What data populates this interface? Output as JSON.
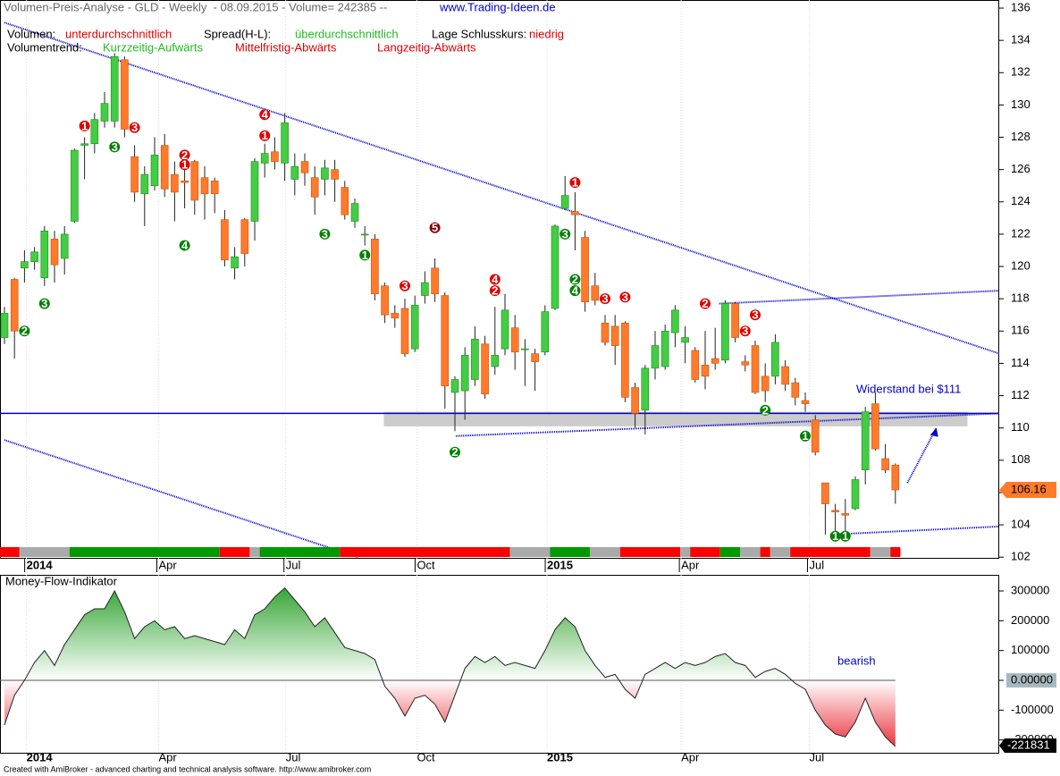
{
  "header": {
    "title": "Volumen-Preis-Analyse - GLD - Weekly  - 08.09.2015 - Volume= 242385 --",
    "url": "www.Trading-Ideen.de",
    "volumen_label": "Volumen:",
    "volumen_value": "unterdurchschnittlich",
    "spread_label": "Spread(H-L):",
    "spread_value": "überdurchschnittlich",
    "lage_label": "Lage Schlusskurs:",
    "lage_value": "niedrig",
    "trend_label": "Volumentrend:",
    "trend_short": "Kurzzeitig-Aufwärts",
    "trend_mid": "Mittelfristig-Abwärts",
    "trend_long": "Langzeitig-Abwärts"
  },
  "footer": "Created with AmiBroker - advanced charting and technical analysis software. http://www.amibroker.com",
  "chart_data": [
    {
      "type": "candlestick",
      "up_color": "#44cc44",
      "down_color": "#ff7a2a",
      "open": [
        115.6,
        119.2,
        119.9,
        120.3,
        119.3,
        121.7,
        120.5,
        122.8,
        127.5,
        127.6,
        129,
        129,
        132.8,
        126.8,
        124.5,
        125,
        127.5,
        125.7,
        125.3,
        126.5,
        125.5,
        125.3,
        122.9,
        119.9,
        122.9,
        122.8,
        126.4,
        127.1,
        126.4,
        125.4,
        126.5,
        125.5,
        125.4,
        126,
        124.9,
        122.8,
        122,
        121.7,
        118.8,
        117.1,
        117.4,
        114.9,
        118.2,
        119.9,
        118.2,
        112.2,
        112.3,
        113,
        115.2,
        113.8,
        114.9,
        116.2,
        114.9,
        114.6,
        114.7,
        117.4,
        123.6,
        123.4,
        121.8,
        118.8,
        116.5,
        116.3,
        116.5,
        112.5,
        111.1,
        113.7,
        113.8,
        115.9,
        115.3,
        114.8,
        113.9,
        114.3,
        114.2,
        117.7,
        114.1,
        115.1,
        113.2,
        113.2,
        113.8,
        112.8,
        111.7,
        110.5,
        106.6,
        104.9,
        104.7,
        105,
        107.4,
        111.5,
        108.1,
        107.7
      ],
      "high": [
        117.5,
        119.3,
        121,
        121.2,
        122.5,
        122.2,
        122.5,
        127.3,
        128,
        129.5,
        130.8,
        133.2,
        133,
        127.5,
        126.2,
        128,
        128.2,
        126.5,
        126,
        126.6,
        126.2,
        125.5,
        123.5,
        121.2,
        123,
        126.7,
        127.6,
        128,
        129.5,
        127,
        127,
        126.2,
        126.6,
        126.6,
        125.3,
        124.2,
        122.5,
        122,
        119,
        117.6,
        118,
        118.2,
        119.7,
        120.5,
        118.4,
        113.2,
        115,
        116.3,
        115.7,
        117.5,
        118.3,
        117,
        115.5,
        114.9,
        117.6,
        122.6,
        125.6,
        124.6,
        122.2,
        119.6,
        117,
        117,
        116.6,
        112.8,
        113.9,
        116,
        116.4,
        117.6,
        116.3,
        115,
        116,
        116.2,
        117.9,
        117.8,
        114.5,
        115.4,
        114,
        115.8,
        114.2,
        113.1,
        112.2,
        110.8,
        106.6,
        105.3,
        105.6,
        107,
        111.3,
        112.2,
        109,
        107.8
      ],
      "low": [
        115.2,
        114.3,
        119,
        119.8,
        118.8,
        119,
        119.5,
        122.7,
        125.4,
        127,
        128.6,
        128.6,
        128,
        124,
        122.5,
        124.7,
        124.3,
        122.8,
        123.6,
        123.2,
        122.9,
        123.3,
        120,
        119.2,
        120,
        121.6,
        125.5,
        126,
        125.3,
        124.4,
        125,
        123.2,
        124.4,
        124,
        122.9,
        122.4,
        121.3,
        117.9,
        116.5,
        116.2,
        114.4,
        114.7,
        117.7,
        117.8,
        111.2,
        109.8,
        110.5,
        112.6,
        111.8,
        113.3,
        114.5,
        113.6,
        112.6,
        112.3,
        114.5,
        117.3,
        123.5,
        121,
        117.2,
        117.6,
        115.1,
        113.9,
        111.6,
        110,
        109.6,
        113,
        113.6,
        115,
        114,
        112.8,
        112.4,
        113.6,
        114,
        115.3,
        113.5,
        112.1,
        111.6,
        112.7,
        112.3,
        111.4,
        111,
        108.3,
        103.4,
        103.5,
        103.6,
        104.9,
        106.5,
        108.6,
        107.2,
        105.3
      ],
      "close": [
        117.1,
        116,
        120.3,
        120.9,
        122.2,
        120.1,
        122,
        127.2,
        127.6,
        129.1,
        130.1,
        133,
        128.5,
        124.6,
        125.7,
        126.9,
        124.8,
        124.6,
        125.2,
        124.1,
        124.5,
        124.5,
        120.4,
        120.6,
        120.8,
        126.5,
        127,
        126.5,
        128.9,
        126.2,
        125.8,
        124.3,
        126.1,
        125.4,
        123.2,
        123.9,
        122,
        118.3,
        117,
        116.8,
        114.6,
        117.6,
        119,
        118.3,
        112.6,
        113,
        114.5,
        115.5,
        112.1,
        114.5,
        117.3,
        114.7,
        114.9,
        114.1,
        117.2,
        122.5,
        124.4,
        123.2,
        117.8,
        117.9,
        115.3,
        115.1,
        111.9,
        110.9,
        113.7,
        115.1,
        116,
        117.3,
        115.6,
        113,
        113.2,
        114,
        117.7,
        115.6,
        113.9,
        112.2,
        112.3,
        115.3,
        112.7,
        111.9,
        111.5,
        108.5,
        105.3,
        104.8,
        104.6,
        106.8,
        111,
        108.7,
        107.4,
        106.16
      ],
      "ylim": [
        101.9,
        136.5
      ],
      "yticks": [
        102,
        104,
        106,
        108,
        110,
        112,
        114,
        116,
        118,
        120,
        122,
        124,
        126,
        128,
        130,
        132,
        134,
        136
      ],
      "xticks": [
        {
          "value": 2.2,
          "label": "2014"
        },
        {
          "value": 15.4,
          "label": "Apr"
        },
        {
          "value": 28.1,
          "label": "Jul"
        },
        {
          "value": 41.2,
          "label": "Oct"
        },
        {
          "value": 54.2,
          "label": "2015"
        },
        {
          "value": 67.6,
          "label": "Apr"
        },
        {
          "value": 80.4,
          "label": "Jul"
        }
      ],
      "resistance": 110.9,
      "resistance_color": "#0000cc",
      "zone": {
        "from": 37.9,
        "to": 96.2,
        "low": 110.1,
        "high": 111.0,
        "color": "#cccccc"
      },
      "trendlines": [
        {
          "points": [
            [
              0,
              135.1
            ],
            [
              99.4,
              114.6
            ]
          ],
          "color": "#0000cc"
        },
        {
          "points": [
            [
              0,
              109.25
            ],
            [
              35.3,
              102
            ]
          ],
          "color": "#0000cc"
        },
        {
          "points": [
            [
              45.1,
              109.5
            ],
            [
              99.4,
              110.9
            ]
          ],
          "color": "#0000cc"
        },
        {
          "points": [
            [
              71.4,
              117.7
            ],
            [
              99.4,
              118.5
            ]
          ],
          "color": "#0000cc"
        },
        {
          "points": [
            [
              82.6,
              103.4
            ],
            [
              99.4,
              103.9
            ]
          ],
          "color": "#0000cc"
        },
        {
          "points": [
            [
              90.2,
              106.6
            ],
            [
              93.1,
              110.0
            ]
          ],
          "color": "#0000cc"
        }
      ],
      "annotation": "Widerstand bei $111",
      "signals": [
        {
          "index": 2,
          "price": 116.0,
          "label": "2",
          "color": "#008000"
        },
        {
          "index": 4,
          "price": 117.7,
          "label": "3",
          "color": "#008000"
        },
        {
          "index": 8,
          "price": 128.7,
          "label": "1",
          "color": "#e00000"
        },
        {
          "index": 11,
          "price": 127.4,
          "label": "3",
          "color": "#008000"
        },
        {
          "index": 13,
          "price": 128.6,
          "label": "3",
          "color": "#e00000"
        },
        {
          "index": 18,
          "price": 126.9,
          "label": "2",
          "color": "#e00000"
        },
        {
          "index": 18,
          "price": 126.3,
          "label": "1",
          "color": "#e00000"
        },
        {
          "index": 18,
          "price": 121.3,
          "label": "4",
          "color": "#008000"
        },
        {
          "index": 26,
          "price": 129.4,
          "label": "4",
          "color": "#e00000"
        },
        {
          "index": 26,
          "price": 128.1,
          "label": "1",
          "color": "#e00000"
        },
        {
          "index": 32,
          "price": 122.0,
          "label": "3",
          "color": "#008000"
        },
        {
          "index": 36,
          "price": 120.7,
          "label": "1",
          "color": "#008000"
        },
        {
          "index": 43,
          "price": 122.4,
          "label": "5",
          "color": "#800000"
        },
        {
          "index": 40,
          "price": 118.8,
          "label": "3",
          "color": "#e00000"
        },
        {
          "index": 49,
          "price": 119.2,
          "label": "4",
          "color": "#e00000"
        },
        {
          "index": 49,
          "price": 118.5,
          "label": "2",
          "color": "#e00000"
        },
        {
          "index": 45,
          "price": 108.5,
          "label": "2",
          "color": "#008000"
        },
        {
          "index": 56,
          "price": 122.0,
          "label": "3",
          "color": "#008000"
        },
        {
          "index": 57,
          "price": 125.2,
          "label": "1",
          "color": "#e00000"
        },
        {
          "index": 57,
          "price": 119.2,
          "label": "2",
          "color": "#008000"
        },
        {
          "index": 57,
          "price": 118.5,
          "label": "4",
          "color": "#008000"
        },
        {
          "index": 60,
          "price": 118.0,
          "label": "3",
          "color": "#e00000"
        },
        {
          "index": 62,
          "price": 118.1,
          "label": "3",
          "color": "#e00000"
        },
        {
          "index": 70,
          "price": 117.7,
          "label": "2",
          "color": "#e00000"
        },
        {
          "index": 75,
          "price": 117.0,
          "label": "3",
          "color": "#e00000"
        },
        {
          "index": 74,
          "price": 116.0,
          "label": "3",
          "color": "#e00000"
        },
        {
          "index": 76,
          "price": 111.1,
          "label": "2",
          "color": "#008000"
        },
        {
          "index": 80,
          "price": 109.5,
          "label": "1",
          "color": "#008000"
        },
        {
          "index": 83,
          "price": 103.3,
          "label": "1",
          "color": "#008000"
        },
        {
          "index": 84,
          "price": 103.3,
          "label": "1",
          "color": "#008000"
        }
      ],
      "volume_trend": [
        {
          "weeks": 2,
          "color": "#ff0000"
        },
        {
          "weeks": 5,
          "color": "#aaaaaa"
        },
        {
          "weeks": 15,
          "color": "#009900"
        },
        {
          "weeks": 3,
          "color": "#ff0000"
        },
        {
          "weeks": 1,
          "color": "#aaaaaa"
        },
        {
          "weeks": 8,
          "color": "#009900"
        },
        {
          "weeks": 17,
          "color": "#ff0000"
        },
        {
          "weeks": 4,
          "color": "#aaaaaa"
        },
        {
          "weeks": 4,
          "color": "#009900"
        },
        {
          "weeks": 3,
          "color": "#aaaaaa"
        },
        {
          "weeks": 6,
          "color": "#ff0000"
        },
        {
          "weeks": 1,
          "color": "#aaaaaa"
        },
        {
          "weeks": 3,
          "color": "#ff0000"
        },
        {
          "weeks": 2,
          "color": "#009900"
        },
        {
          "weeks": 2,
          "color": "#aaaaaa"
        },
        {
          "weeks": 1,
          "color": "#ff0000"
        },
        {
          "weeks": 2,
          "color": "#aaaaaa"
        },
        {
          "weeks": 8,
          "color": "#ff0000"
        },
        {
          "weeks": 2,
          "color": "#aaaaaa"
        },
        {
          "weeks": 1,
          "color": "#ff0000"
        }
      ]
    },
    {
      "type": "area",
      "title": "Money-Flow-Indikator",
      "annotation": "bearish",
      "pos_color": "#1a9a1a",
      "neg_color": "#e8202a",
      "values": [
        -150000,
        -50000,
        0,
        60000,
        100000,
        50000,
        120000,
        170000,
        220000,
        240000,
        240000,
        300000,
        230000,
        140000,
        180000,
        200000,
        170000,
        180000,
        140000,
        150000,
        140000,
        130000,
        120000,
        170000,
        140000,
        220000,
        240000,
        280000,
        310000,
        270000,
        230000,
        180000,
        210000,
        160000,
        110000,
        100000,
        90000,
        70000,
        -20000,
        -60000,
        -120000,
        -60000,
        -50000,
        -80000,
        -140000,
        -50000,
        40000,
        80000,
        60000,
        80000,
        50000,
        60000,
        50000,
        40000,
        100000,
        170000,
        210000,
        180000,
        100000,
        50000,
        10000,
        20000,
        -30000,
        -60000,
        20000,
        40000,
        60000,
        40000,
        60000,
        50000,
        60000,
        80000,
        90000,
        60000,
        50000,
        10000,
        30000,
        40000,
        20000,
        -10000,
        -30000,
        -100000,
        -150000,
        -180000,
        -190000,
        -140000,
        -60000,
        -140000,
        -190000,
        -221831
      ],
      "ylim": [
        -246000,
        354000
      ],
      "yticks": [
        300000,
        200000,
        100000,
        {
          "value": 0,
          "label": "0.00000"
        },
        -100000,
        -200000
      ],
      "xticks": [
        {
          "value": 2.2,
          "label": "2014"
        },
        {
          "value": 15.4,
          "label": "Apr"
        },
        {
          "value": 28.1,
          "label": "Jul"
        },
        {
          "value": 41.2,
          "label": "Oct"
        },
        {
          "value": 54.2,
          "label": "2015"
        },
        {
          "value": 67.6,
          "label": "Apr"
        },
        {
          "value": 80.4,
          "label": "Jul"
        }
      ]
    }
  ]
}
